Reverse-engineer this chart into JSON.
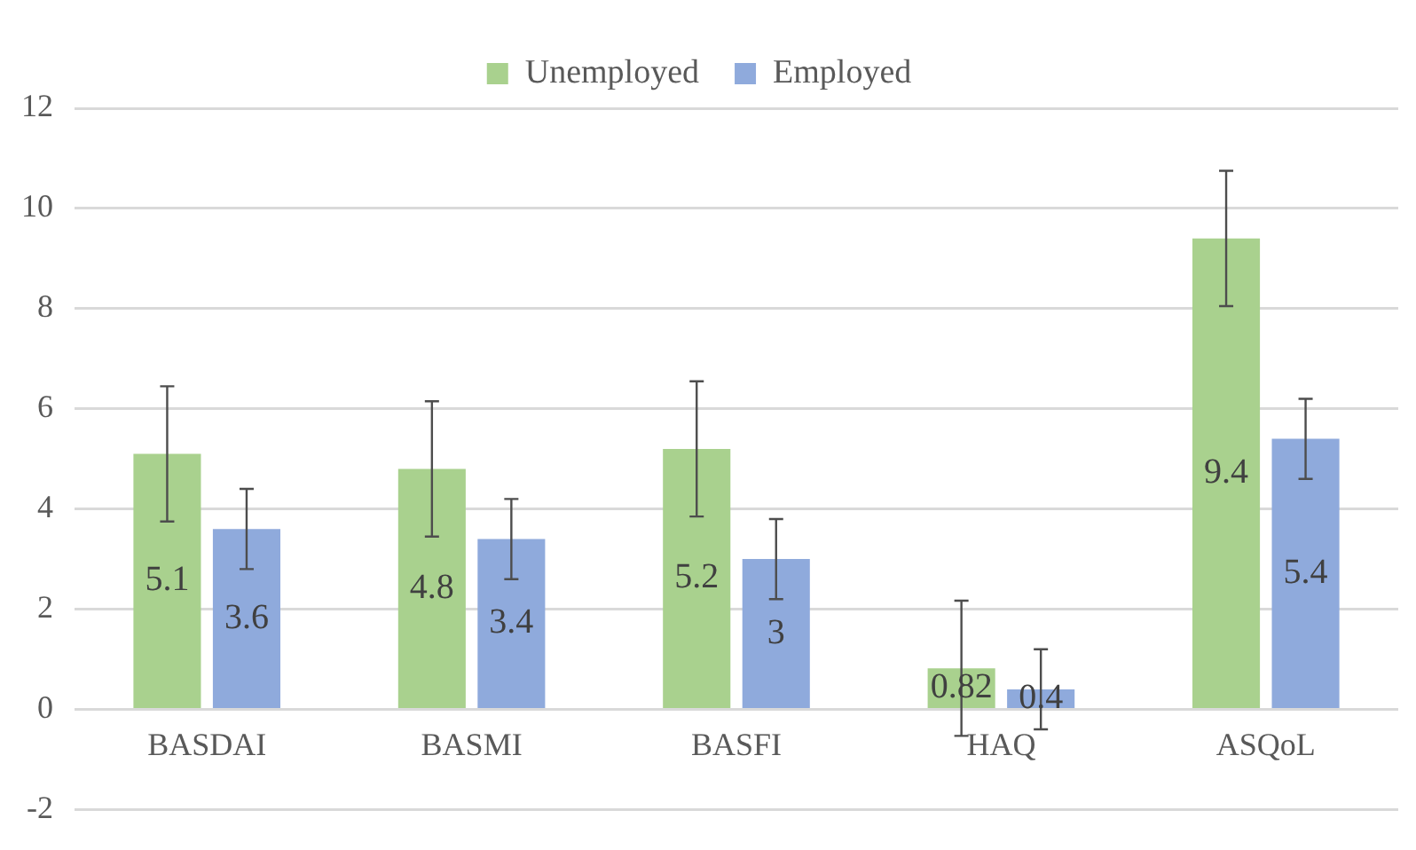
{
  "chart_data": {
    "type": "bar",
    "categories": [
      "BASDAI",
      "BASMI",
      "BASFI",
      "HAQ",
      "ASQoL"
    ],
    "series": [
      {
        "name": "Unemployed",
        "color": "#a9d18e",
        "values": [
          5.1,
          4.8,
          5.2,
          0.82,
          9.4
        ],
        "errors": [
          1.35,
          1.35,
          1.35,
          1.35,
          1.35
        ]
      },
      {
        "name": "Employed",
        "color": "#8faadc",
        "values": [
          3.6,
          3.4,
          3,
          0.4,
          5.4
        ],
        "errors": [
          0.8,
          0.8,
          0.8,
          0.8,
          0.8
        ]
      }
    ],
    "ylim": [
      -2,
      12
    ],
    "yticks": [
      -2,
      0,
      2,
      4,
      6,
      8,
      10,
      12
    ],
    "grid": "y",
    "legend": "top",
    "data_labels": true
  }
}
